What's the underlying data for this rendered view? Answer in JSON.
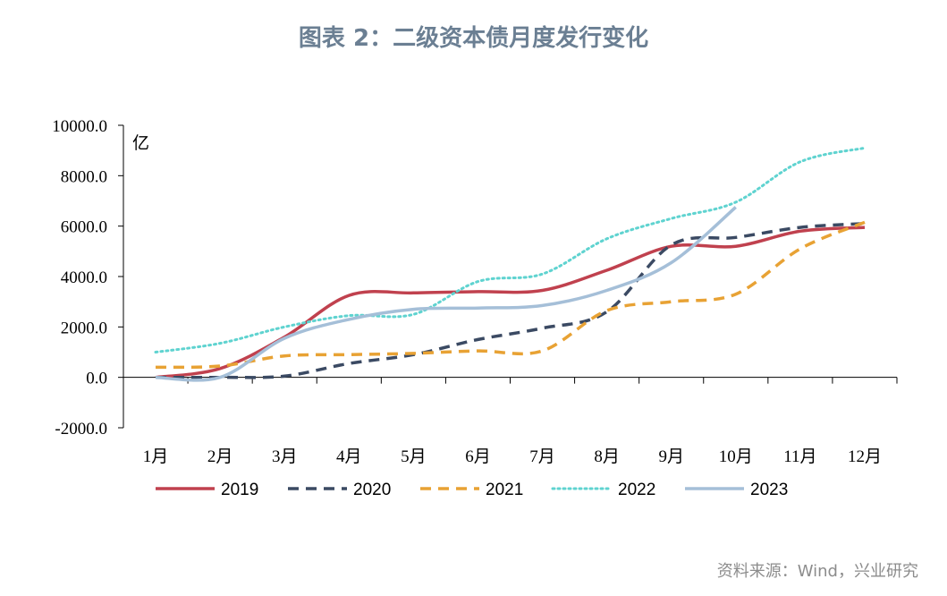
{
  "title": "图表 2：二级资本债月度发行变化",
  "source": "资料来源：Wind，兴业研究",
  "chart_data": {
    "type": "line",
    "unit_label": "亿",
    "categories": [
      "1月",
      "2月",
      "3月",
      "4月",
      "5月",
      "6月",
      "7月",
      "8月",
      "9月",
      "10月",
      "11月",
      "12月"
    ],
    "y_ticks": [
      "-2000.0",
      "0.0",
      "2000.0",
      "4000.0",
      "6000.0",
      "8000.0",
      "10000.0"
    ],
    "ylim": [
      -2000,
      10000
    ],
    "grid": false,
    "legend_position": "bottom",
    "series": [
      {
        "name": "2019",
        "color": "#c0414e",
        "style": "solid",
        "values": [
          0,
          350,
          1600,
          3250,
          3350,
          3400,
          3450,
          4250,
          5200,
          5200,
          5800,
          5950
        ]
      },
      {
        "name": "2020",
        "color": "#3b4a63",
        "style": "dashed",
        "values": [
          0,
          0,
          50,
          550,
          900,
          1500,
          1950,
          2600,
          5250,
          5550,
          5950,
          6100
        ]
      },
      {
        "name": "2021",
        "color": "#e8a234",
        "style": "dashed",
        "values": [
          400,
          450,
          850,
          900,
          950,
          1050,
          1050,
          2650,
          3000,
          3300,
          5100,
          6150
        ]
      },
      {
        "name": "2022",
        "color": "#5fd3d0",
        "style": "dotted",
        "values": [
          1000,
          1350,
          2000,
          2450,
          2500,
          3800,
          4100,
          5500,
          6300,
          6950,
          8550,
          9100
        ]
      },
      {
        "name": "2023",
        "color": "#a5bfd8",
        "style": "solid",
        "values": [
          0,
          0,
          1550,
          2300,
          2700,
          2750,
          2850,
          3450,
          4550,
          6750,
          null,
          null
        ]
      }
    ]
  }
}
